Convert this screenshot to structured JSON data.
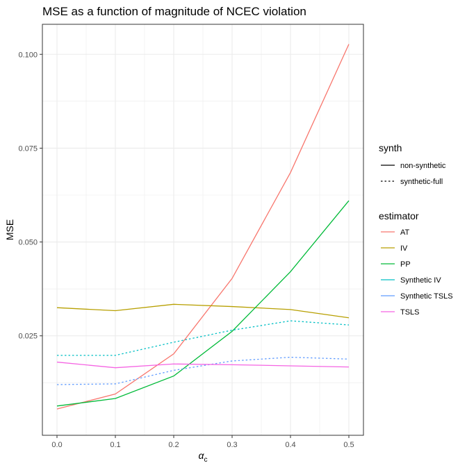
{
  "chart_data": {
    "type": "line",
    "title": "MSE as a function of magnitude of NCEC violation",
    "xlabel_main": "α",
    "xlabel_sub": "c",
    "ylabel": "MSE",
    "xlim": [
      -0.025,
      0.525
    ],
    "ylim": [
      -0.0015,
      0.108
    ],
    "x": [
      0.0,
      0.1,
      0.2,
      0.3,
      0.4,
      0.5
    ],
    "x_ticks": [
      0.0,
      0.1,
      0.2,
      0.3,
      0.4,
      0.5
    ],
    "x_tick_labels": [
      "0.0",
      "0.1",
      "0.2",
      "0.3",
      "0.4",
      "0.5"
    ],
    "y_ticks": [
      0.025,
      0.05,
      0.075,
      0.1
    ],
    "y_tick_labels": [
      "0.025",
      "0.050",
      "0.075",
      "0.100"
    ],
    "grid": true,
    "legend_placement": "right",
    "legend_synth": {
      "title": "synth",
      "items": [
        {
          "label": "non-synthetic",
          "dash": "solid"
        },
        {
          "label": "synthetic-full",
          "dash": "dotted"
        }
      ]
    },
    "legend_estimator": {
      "title": "estimator",
      "items": [
        {
          "label": "AT",
          "color": "#F8766D"
        },
        {
          "label": "IV",
          "color": "#B79F00"
        },
        {
          "label": "PP",
          "color": "#00BA38"
        },
        {
          "label": "Synthetic IV",
          "color": "#00BFC4"
        },
        {
          "label": "Synthetic TSLS",
          "color": "#619CFF"
        },
        {
          "label": "TSLS",
          "color": "#F564E3"
        }
      ]
    },
    "series": [
      {
        "name": "AT",
        "color": "#F8766D",
        "dash": "solid",
        "values": [
          0.0055,
          0.0095,
          0.0202,
          0.0403,
          0.0685,
          0.1027
        ]
      },
      {
        "name": "IV",
        "color": "#B79F00",
        "dash": "solid",
        "values": [
          0.0325,
          0.0317,
          0.0334,
          0.0328,
          0.032,
          0.0298
        ]
      },
      {
        "name": "PP",
        "color": "#00BA38",
        "dash": "solid",
        "values": [
          0.0063,
          0.0083,
          0.0143,
          0.0262,
          0.0421,
          0.061
        ]
      },
      {
        "name": "Synthetic IV",
        "color": "#00BFC4",
        "dash": "dotted",
        "values": [
          0.0198,
          0.0198,
          0.0233,
          0.0265,
          0.029,
          0.0279
        ]
      },
      {
        "name": "Synthetic TSLS",
        "color": "#619CFF",
        "dash": "dotted",
        "values": [
          0.012,
          0.0122,
          0.0158,
          0.0183,
          0.0193,
          0.0188
        ]
      },
      {
        "name": "TSLS",
        "color": "#F564E3",
        "dash": "solid",
        "values": [
          0.018,
          0.0165,
          0.0175,
          0.0173,
          0.017,
          0.0167
        ]
      }
    ]
  }
}
